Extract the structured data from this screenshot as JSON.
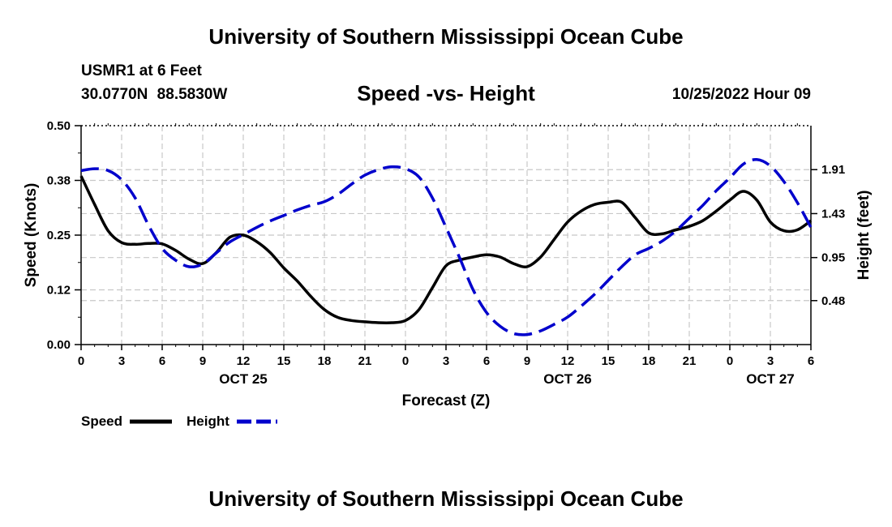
{
  "header": {
    "title": "University of Southern Mississippi Ocean Cube",
    "station": "USMR1 at 6 Feet",
    "coordinates": "30.0770N 88.5830W",
    "datetime": "10/25/2022 Hour 09"
  },
  "footer": {
    "title": "University of Southern Mississippi Ocean Cube"
  },
  "chart_data": {
    "type": "line",
    "title": "Speed -vs- Height",
    "xlabel": "Forecast (Z)",
    "ylabel": "Speed (Knots)",
    "y2label": "Height (feet)",
    "x_range": [
      0,
      54
    ],
    "x_ticks": [
      {
        "x": 0,
        "label": "0"
      },
      {
        "x": 3,
        "label": "3"
      },
      {
        "x": 6,
        "label": "6"
      },
      {
        "x": 9,
        "label": "9"
      },
      {
        "x": 12,
        "label": "12"
      },
      {
        "x": 15,
        "label": "15"
      },
      {
        "x": 18,
        "label": "18"
      },
      {
        "x": 21,
        "label": "21"
      },
      {
        "x": 24,
        "label": "0"
      },
      {
        "x": 27,
        "label": "3"
      },
      {
        "x": 30,
        "label": "6"
      },
      {
        "x": 33,
        "label": "9"
      },
      {
        "x": 36,
        "label": "12"
      },
      {
        "x": 39,
        "label": "15"
      },
      {
        "x": 42,
        "label": "18"
      },
      {
        "x": 45,
        "label": "21"
      },
      {
        "x": 48,
        "label": "0"
      },
      {
        "x": 51,
        "label": "3"
      },
      {
        "x": 54,
        "label": "6"
      }
    ],
    "date_labels": [
      {
        "x": 12,
        "label": "OCT 25"
      },
      {
        "x": 36,
        "label": "OCT 26"
      },
      {
        "x": 51,
        "label": "OCT 27"
      }
    ],
    "y_range": [
      0,
      0.5
    ],
    "y_ticks": [
      {
        "value": 0.0,
        "label": "0.00"
      },
      {
        "value": 0.125,
        "label": "0.12"
      },
      {
        "value": 0.25,
        "label": "0.25"
      },
      {
        "value": 0.375,
        "label": "0.38"
      },
      {
        "value": 0.5,
        "label": "0.50"
      }
    ],
    "y2_range": [
      0,
      2.39
    ],
    "y2_ticks": [
      {
        "value": 0.48,
        "label": "0.48"
      },
      {
        "value": 0.95,
        "label": "0.95"
      },
      {
        "value": 1.43,
        "label": "1.43"
      },
      {
        "value": 1.91,
        "label": "1.91"
      }
    ],
    "grid": true,
    "series": [
      {
        "name": "Speed",
        "axis": "left",
        "color": "#000000",
        "style": "solid",
        "x": [
          0,
          1,
          2,
          3,
          4,
          5,
          6,
          7,
          8,
          9,
          10,
          11,
          12,
          13,
          14,
          15,
          16,
          17,
          18,
          19,
          20,
          21,
          22,
          23,
          24,
          25,
          26,
          27,
          28,
          29,
          30,
          31,
          32,
          33,
          34,
          35,
          36,
          37,
          38,
          39,
          40,
          41,
          42,
          43,
          44,
          45,
          46,
          47,
          48,
          49,
          50,
          51,
          52,
          53,
          54
        ],
        "values": [
          0.385,
          0.32,
          0.26,
          0.233,
          0.229,
          0.231,
          0.23,
          0.215,
          0.195,
          0.185,
          0.21,
          0.245,
          0.25,
          0.235,
          0.21,
          0.175,
          0.145,
          0.11,
          0.08,
          0.062,
          0.055,
          0.052,
          0.05,
          0.05,
          0.055,
          0.08,
          0.13,
          0.18,
          0.193,
          0.2,
          0.205,
          0.2,
          0.185,
          0.178,
          0.2,
          0.24,
          0.28,
          0.305,
          0.32,
          0.325,
          0.325,
          0.29,
          0.255,
          0.253,
          0.262,
          0.27,
          0.283,
          0.305,
          0.33,
          0.35,
          0.33,
          0.28,
          0.26,
          0.262,
          0.283
        ]
      },
      {
        "name": "Height",
        "axis": "right",
        "color": "#0000cc",
        "style": "dashed",
        "x": [
          0,
          1,
          2,
          3,
          4,
          5,
          6,
          7,
          8,
          9,
          10,
          11,
          12,
          13,
          14,
          15,
          16,
          17,
          18,
          19,
          20,
          21,
          22,
          23,
          24,
          25,
          26,
          27,
          28,
          29,
          30,
          31,
          32,
          33,
          34,
          35,
          36,
          37,
          38,
          39,
          40,
          41,
          42,
          43,
          44,
          45,
          46,
          47,
          48,
          49,
          50,
          51,
          52,
          53,
          54
        ],
        "values": [
          1.9,
          1.92,
          1.9,
          1.8,
          1.6,
          1.3,
          1.05,
          0.92,
          0.85,
          0.88,
          1.0,
          1.12,
          1.2,
          1.28,
          1.35,
          1.41,
          1.47,
          1.52,
          1.56,
          1.64,
          1.75,
          1.85,
          1.91,
          1.94,
          1.92,
          1.83,
          1.6,
          1.28,
          0.95,
          0.6,
          0.35,
          0.2,
          0.12,
          0.11,
          0.15,
          0.22,
          0.3,
          0.42,
          0.55,
          0.7,
          0.85,
          0.98,
          1.05,
          1.13,
          1.24,
          1.38,
          1.52,
          1.68,
          1.82,
          1.97,
          2.02,
          1.95,
          1.78,
          1.55,
          1.28
        ]
      }
    ],
    "legend": [
      {
        "name": "Speed",
        "color": "#000000",
        "style": "solid"
      },
      {
        "name": "Height",
        "color": "#0000cc",
        "style": "dashed"
      }
    ],
    "legend_position": "bottom-left"
  }
}
